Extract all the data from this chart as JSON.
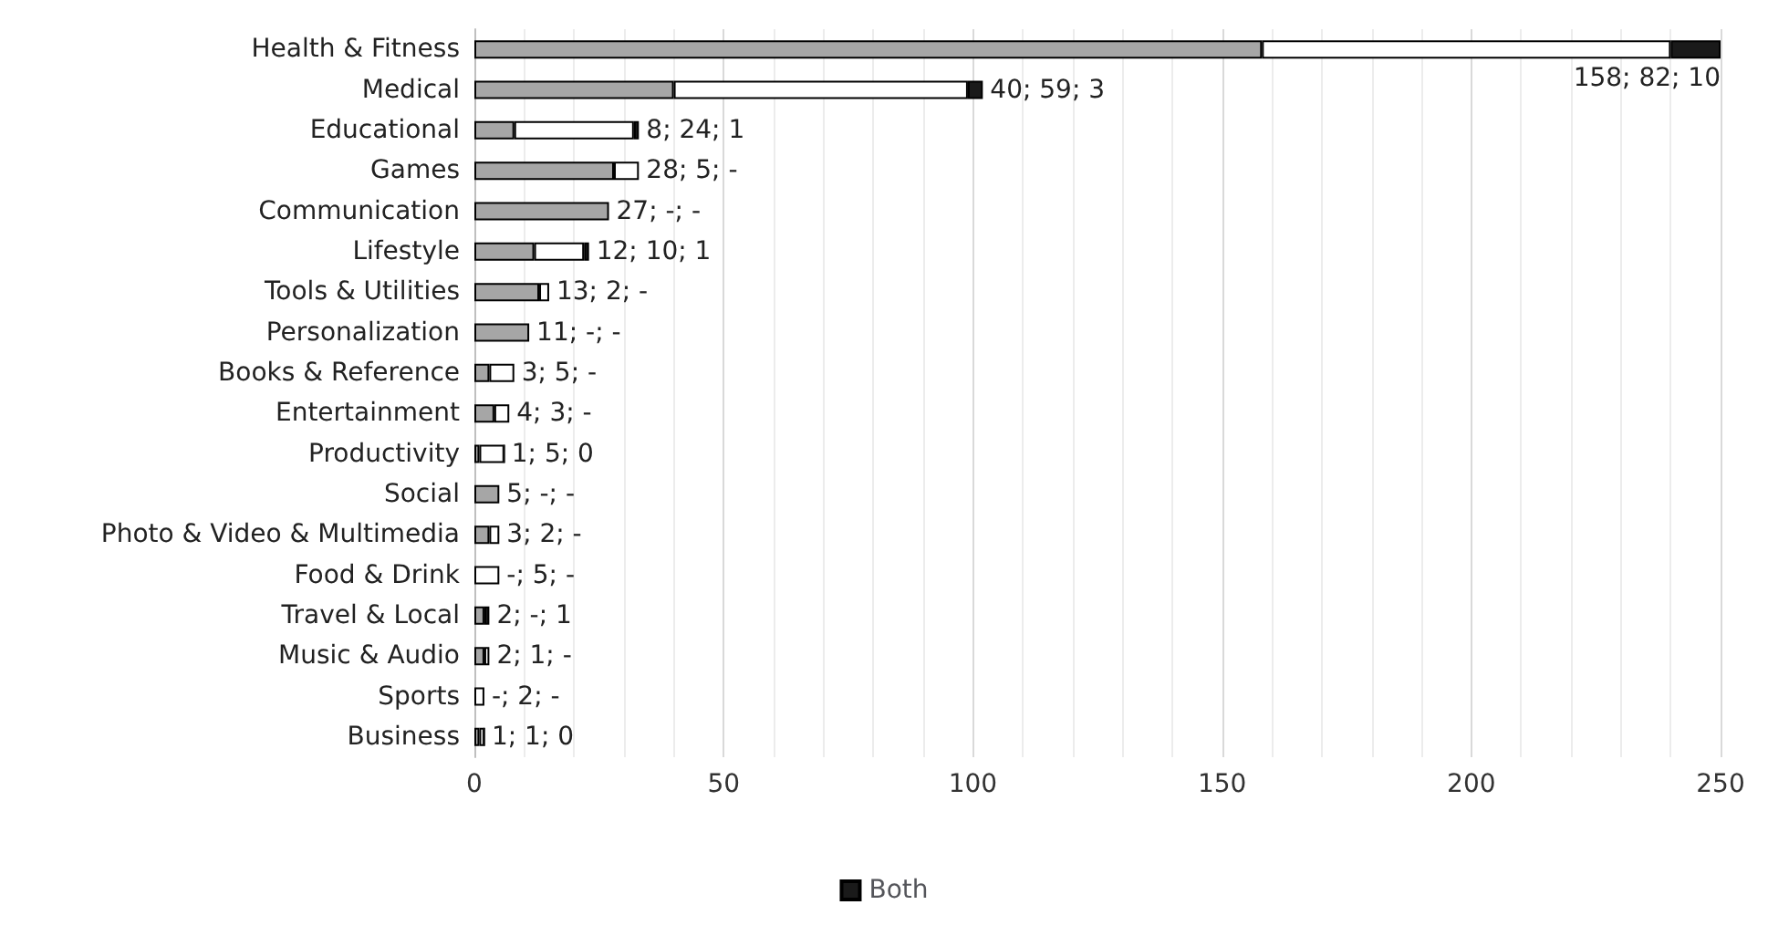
{
  "chart_data": {
    "type": "bar",
    "orientation": "horizontal",
    "stacked": true,
    "categories": [
      "Health & Fitness",
      "Medical",
      "Educational",
      "Games",
      "Communication",
      "Lifestyle",
      "Tools & Utilities",
      "Personalization",
      "Books & Reference",
      "Entertainment",
      "Productivity",
      "Social",
      "Photo & Video & Multimedia",
      "Food & Drink",
      "Travel & Local",
      "Music & Audio",
      "Sports",
      "Business"
    ],
    "series": [
      {
        "color": "#a6a6a6",
        "values": [
          158,
          40,
          8,
          28,
          27,
          12,
          13,
          11,
          3,
          4,
          1,
          5,
          3,
          null,
          2,
          2,
          null,
          1
        ]
      },
      {
        "color": "#ffffff",
        "values": [
          82,
          59,
          24,
          5,
          null,
          10,
          2,
          null,
          5,
          3,
          5,
          null,
          2,
          5,
          null,
          1,
          2,
          1
        ]
      },
      {
        "name": "Both",
        "color": "#1a1a1a",
        "values": [
          10,
          3,
          1,
          null,
          null,
          1,
          null,
          null,
          null,
          null,
          0,
          null,
          null,
          null,
          1,
          null,
          null,
          0
        ]
      }
    ],
    "totals": [
      "158; 82; 10",
      "40; 59; 3",
      "8; 24; 1",
      "28; 5; -",
      "27; -; -",
      "12; 10; 1",
      "13; 2; -",
      "11; -; -",
      "3; 5; -",
      "4; 3; -",
      "1; 5; 0",
      "5; -; -",
      "3; 2; -",
      "-; 5; -",
      "2; -; 1",
      "2; 1; -",
      "-; 2; -",
      "1; 1; 0"
    ],
    "xlim": [
      0,
      250
    ],
    "xticks": [
      0,
      50,
      100,
      150,
      200,
      250
    ],
    "grid": "x",
    "legend": "bottom"
  }
}
